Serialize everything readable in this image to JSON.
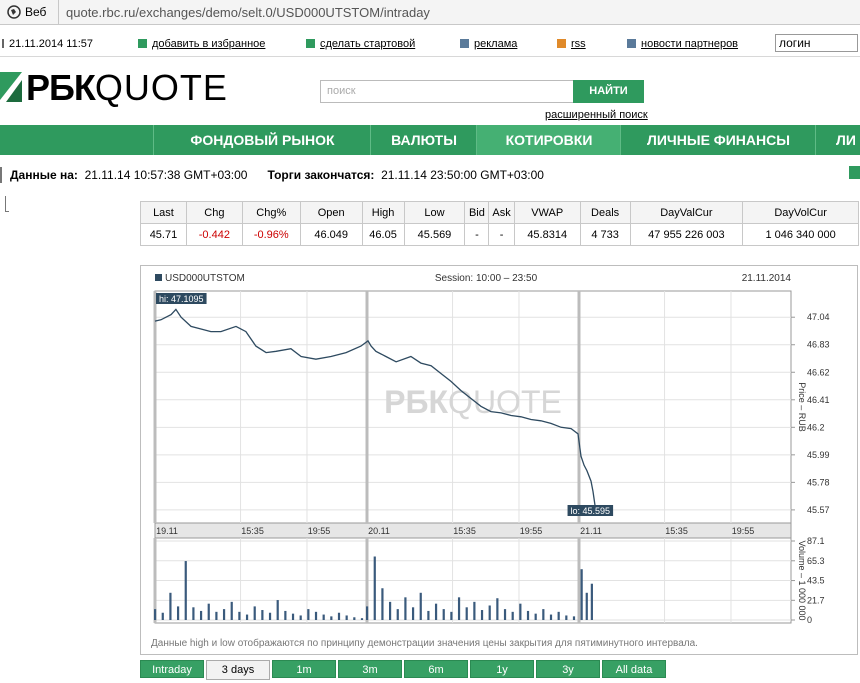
{
  "browser": {
    "label": "Веб",
    "url": "quote.rbc.ru/exchanges/demo/selt.0/USD000UTSTOM/intraday"
  },
  "toolbar": {
    "date": "21.11.2014 11:57",
    "links": [
      "добавить в избранное",
      "сделать стартовой",
      "реклама",
      "rss",
      "новости партнеров"
    ],
    "login": "логин"
  },
  "header": {
    "logo_bold": "РБК",
    "logo_light": "QUOTE",
    "search_placeholder": "поиск",
    "search_button": "НАЙТИ",
    "advanced_search": "расширенный поиск"
  },
  "nav": [
    "ФОНДОВЫЙ РЫНОК",
    "ВАЛЮТЫ",
    "КОТИРОВКИ",
    "ЛИЧНЫЕ ФИНАНСЫ",
    "ЛИ"
  ],
  "status": {
    "data_label": "Данные на:",
    "data_time": "21.11.14 10:57:38 GMT+03:00",
    "close_label": "Торги закончатся:",
    "close_time": "21.11.14 23:50:00 GMT+03:00"
  },
  "table": {
    "headers": [
      "Last",
      "Chg",
      "Chg%",
      "Open",
      "High",
      "Low",
      "Bid",
      "Ask",
      "VWAP",
      "Deals",
      "DayValCur",
      "DayVolCur"
    ],
    "rows": [
      [
        "45.71",
        "-0.442",
        "-0.96%",
        "46.049",
        "46.05",
        "45.569",
        "-",
        "-",
        "45.8314",
        "4 733",
        "47 955 226 003",
        "1 046 340 000"
      ]
    ]
  },
  "chart_data": [
    {
      "type": "line",
      "subtitle": "Session: 10:00 – 23:50",
      "date": "21.11.2014",
      "y_label": "Price – RUB",
      "hi_label": "hi: 47.1095",
      "lo_label": "lo: 45.595",
      "x": [
        0,
        23,
        63,
        82,
        102,
        141,
        180,
        219,
        258,
        317,
        356,
        395,
        435,
        474,
        532,
        572,
        630,
        689,
        748,
        806,
        834,
        846,
        865,
        904,
        944,
        1002,
        1041,
        1081,
        1120,
        1159,
        1198,
        1237,
        1276,
        1315,
        1355,
        1394,
        1433,
        1472,
        1511,
        1550,
        1590,
        1629,
        1656,
        1668,
        1680,
        1691,
        1707,
        1715,
        1723
      ],
      "series": [
        {
          "name": "USD000UTSTOM",
          "color": "#2e4a60",
          "values": [
            47.01,
            47.02,
            47.06,
            47.1,
            47.04,
            46.97,
            46.95,
            46.93,
            46.93,
            46.97,
            46.93,
            46.82,
            46.77,
            46.78,
            46.8,
            46.74,
            46.72,
            46.74,
            46.77,
            46.82,
            46.86,
            46.82,
            46.78,
            46.74,
            46.7,
            46.74,
            46.69,
            46.67,
            46.61,
            46.55,
            46.48,
            46.42,
            46.36,
            46.32,
            46.31,
            46.29,
            46.28,
            46.26,
            46.25,
            46.23,
            46.2,
            46.19,
            46.15,
            45.98,
            45.91,
            45.87,
            45.79,
            45.71,
            45.6
          ]
        }
      ],
      "xlim": [
        0,
        2490
      ],
      "xticks": [
        {
          "value": 0,
          "label": "19.11"
        },
        {
          "value": 335,
          "label": "15:35"
        },
        {
          "value": 595,
          "label": "19:55"
        },
        {
          "value": 830,
          "label": "20.11"
        },
        {
          "value": 1165,
          "label": "15:35"
        },
        {
          "value": 1425,
          "label": "19:55"
        },
        {
          "value": 1660,
          "label": "21.11"
        },
        {
          "value": 1995,
          "label": "15:35"
        },
        {
          "value": 2255,
          "label": "19:55"
        }
      ],
      "ylim": [
        45.47,
        47.24
      ],
      "yticks": [
        45.57,
        45.78,
        45.99,
        46.2,
        46.41,
        46.62,
        46.83,
        47.04
      ],
      "grid": true
    },
    {
      "type": "bar",
      "y_label": "Volume – 1 000 000",
      "color": "#3a5a7c",
      "x": [
        0,
        30,
        60,
        90,
        120,
        150,
        180,
        210,
        240,
        270,
        300,
        330,
        360,
        390,
        420,
        450,
        480,
        510,
        540,
        570,
        600,
        630,
        660,
        690,
        720,
        750,
        780,
        810,
        830,
        860,
        890,
        920,
        950,
        980,
        1010,
        1040,
        1070,
        1100,
        1130,
        1160,
        1190,
        1220,
        1250,
        1280,
        1310,
        1340,
        1370,
        1400,
        1430,
        1460,
        1490,
        1520,
        1550,
        1580,
        1610,
        1640,
        1670,
        1690,
        1710
      ],
      "values": [
        12,
        8,
        30,
        15,
        65,
        14,
        10,
        18,
        9,
        12,
        20,
        9,
        6,
        15,
        11,
        8,
        22,
        10,
        7,
        5,
        12,
        9,
        6,
        4,
        8,
        5,
        3,
        2,
        15,
        70,
        35,
        20,
        12,
        25,
        14,
        30,
        10,
        18,
        12,
        9,
        25,
        14,
        20,
        11,
        16,
        24,
        12,
        9,
        18,
        10,
        7,
        12,
        6,
        9,
        5,
        4,
        56,
        30,
        40
      ],
      "xlim": [
        0,
        2490
      ],
      "xticks": [
        0,
        335,
        595,
        830,
        1165,
        1425,
        1660,
        1995,
        2255
      ],
      "ylim": [
        0,
        87.1
      ],
      "yticks": [
        0,
        21.7,
        43.5,
        65.3,
        87.1
      ],
      "grid": true
    }
  ],
  "note": "Данные high и low отображаются по принципу демонстрации значения цены закрытия для пятиминутного интервала.",
  "periods": [
    "Intraday",
    "3 days",
    "1m",
    "3m",
    "6m",
    "1y",
    "3y",
    "All data"
  ]
}
